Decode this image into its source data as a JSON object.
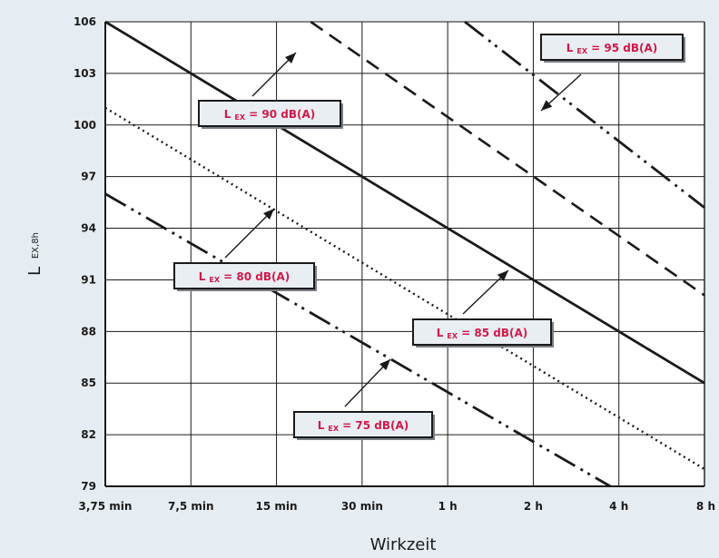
{
  "chart_data": {
    "type": "line",
    "xlabel": "Wirkzeit",
    "ylabel_main": "L",
    "ylabel_sub": "EX,8h",
    "x_categories": [
      "3,75 min",
      "7,5 min",
      "15 min",
      "30 min",
      "1 h",
      "2 h",
      "4 h",
      "8 h"
    ],
    "yticks": [
      "106",
      "103",
      "100",
      "97",
      "94",
      "91",
      "88",
      "85",
      "82",
      "79"
    ],
    "ylim": [
      79,
      106
    ],
    "grid": true,
    "series": [
      {
        "label": "L EX = 95 dB(A)",
        "style": "dashdotdot",
        "points": [
          [
            4.2,
            106
          ],
          [
            7,
            95.2
          ]
        ]
      },
      {
        "label": "L EX = 90 dB(A)",
        "style": "dashed",
        "points": [
          [
            2.4,
            106
          ],
          [
            7,
            90.1
          ]
        ]
      },
      {
        "label": "L EX = 85 dB(A)",
        "style": "solid",
        "points": [
          [
            0,
            106
          ],
          [
            7,
            85
          ]
        ]
      },
      {
        "label": "L EX = 80 dB(A)",
        "style": "dotted",
        "points": [
          [
            0,
            101
          ],
          [
            7,
            80
          ]
        ]
      },
      {
        "label": "L EX = 75 dB(A)",
        "style": "dashdotdot",
        "points": [
          [
            0,
            96
          ],
          [
            5.9,
            79
          ]
        ]
      }
    ],
    "annotations": [
      {
        "prefix": "L",
        "sub": "EX",
        "rest": " = 95 dB(A)"
      },
      {
        "prefix": "L",
        "sub": "EX",
        "rest": " = 90 dB(A)"
      },
      {
        "prefix": "L",
        "sub": "EX",
        "rest": " = 80 dB(A)"
      },
      {
        "prefix": "L",
        "sub": "EX",
        "rest": " = 85 dB(A)"
      },
      {
        "prefix": "L",
        "sub": "EX",
        "rest": " = 75 dB(A)"
      }
    ]
  },
  "colors": {
    "background": "#e6edf2",
    "plot_background": "#ffffff",
    "line": "#1a1a1a",
    "annotation_text": "#d11a4a"
  }
}
